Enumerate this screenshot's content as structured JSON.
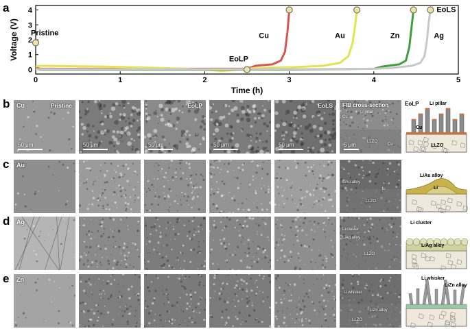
{
  "panels": {
    "a": "a",
    "b": "b",
    "c": "c",
    "d": "d",
    "e": "e"
  },
  "chart_data": {
    "type": "line",
    "title": "",
    "xlabel": "Time (h)",
    "ylabel": "Voltage (V)",
    "xlim": [
      0,
      5
    ],
    "ylim": [
      -0.3,
      4.3
    ],
    "x_ticks": [
      "0",
      "1",
      "2",
      "3",
      "4",
      "5"
    ],
    "y_ticks": [
      "0",
      "1",
      "2",
      "3",
      "4"
    ],
    "grid": false,
    "series": [
      {
        "name": "Cu",
        "color": "#d9534f",
        "x": [
          0,
          0.05,
          1,
          2,
          2.5,
          2.6,
          2.8,
          2.9,
          2.95,
          2.98,
          3.0
        ],
        "y": [
          0.15,
          0.05,
          0.05,
          0.05,
          0.05,
          0.25,
          0.35,
          0.6,
          1.2,
          2.6,
          4.0
        ]
      },
      {
        "name": "Au",
        "color": "#e3e34f",
        "x": [
          0,
          0.05,
          0.8,
          1.5,
          2.0,
          2.2,
          2.6,
          3.0,
          3.4,
          3.6,
          3.7,
          3.75,
          3.78,
          3.8
        ],
        "y": [
          0.2,
          0.25,
          0.2,
          0.1,
          0.0,
          -0.1,
          0.1,
          0.15,
          0.25,
          0.45,
          0.9,
          1.8,
          3.0,
          4.0
        ]
      },
      {
        "name": "Zn",
        "color": "#3f9f3f",
        "x": [
          0,
          0.05,
          1,
          2,
          3,
          4.0,
          4.1,
          4.3,
          4.38,
          4.42,
          4.45,
          4.47
        ],
        "y": [
          0.05,
          0.0,
          0.0,
          0.0,
          0.0,
          0.05,
          0.2,
          0.35,
          0.6,
          1.5,
          3.0,
          4.0
        ]
      },
      {
        "name": "Ag",
        "color": "#c8c8c8",
        "x": [
          0,
          1,
          2,
          3,
          4.0,
          4.2,
          4.45,
          4.55,
          4.6,
          4.63,
          4.65,
          4.67
        ],
        "y": [
          0.02,
          0.02,
          0.02,
          0.02,
          0.05,
          0.1,
          0.25,
          0.45,
          0.9,
          2.0,
          3.2,
          4.0
        ]
      }
    ],
    "markers": [
      {
        "label": "Pristine",
        "x": 0.0,
        "y": 1.8
      },
      {
        "label": "EoLP",
        "x": 2.5,
        "y": 0.0
      },
      {
        "label": "",
        "x": 3.0,
        "y": 4.0
      },
      {
        "label": "",
        "x": 3.8,
        "y": 4.0
      },
      {
        "label": "",
        "x": 4.47,
        "y": 4.0
      },
      {
        "label": "EoLS",
        "x": 4.67,
        "y": 4.0
      }
    ],
    "annotations": [
      {
        "text": "Cu",
        "x": 2.7,
        "y": 2.3
      },
      {
        "text": "Au",
        "x": 3.6,
        "y": 2.3
      },
      {
        "text": "Zn",
        "x": 4.25,
        "y": 2.3
      },
      {
        "text": "Ag",
        "x": 4.77,
        "y": 2.3
      }
    ]
  },
  "rows": [
    {
      "id": "b",
      "metal": "Cu",
      "pristine": "Pristine",
      "col3": "EoLP",
      "col5": "EoLS",
      "fib_header": "FIB cross-section",
      "scale": "50 μm",
      "fib_scale": "5 μm",
      "fib_labels": [
        "Cu",
        "Li pillar",
        "LLZO",
        "Cu"
      ],
      "schematic_title": "EoLP",
      "schematic_labels": [
        "Li pillar",
        "Cu",
        "LLZO"
      ]
    },
    {
      "id": "c",
      "metal": "Au",
      "fib_labels": [
        "LiAu alloy",
        "Li",
        "LLZO"
      ],
      "schematic_labels": [
        "LiAu alloy",
        "Li"
      ]
    },
    {
      "id": "d",
      "metal": "Ag",
      "fib_labels": [
        "Li cluster",
        "LiAg alloy",
        "LLZO"
      ],
      "schematic_labels": [
        "Li cluster",
        "LiAg alloy"
      ]
    },
    {
      "id": "e",
      "metal": "Zn",
      "fib_labels": [
        "Li whisker",
        "LiZn alloy",
        "LLZO"
      ],
      "schematic_labels": [
        "Li whisker",
        "LiZn alloy"
      ]
    }
  ],
  "colors": {
    "sem_dark": "#5a5a5a",
    "sem_light": "#9a9a9a",
    "gold": "#c9b24a",
    "alloy_green": "#b9c89a"
  }
}
